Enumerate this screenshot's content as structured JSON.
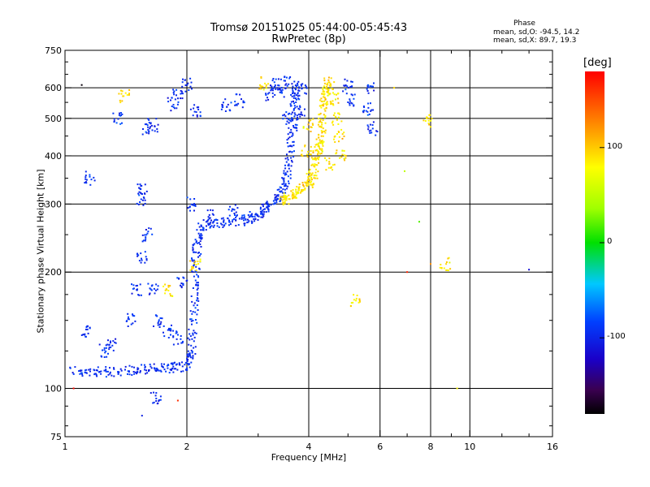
{
  "header": {
    "title_line1": "Tromsø 20151025 05:44:00-05:45:43",
    "title_line2": "RwPretec (8p)"
  },
  "phase_info": {
    "title": "Phase",
    "o_mode": "mean, sd,O: -94.5, 14.2",
    "x_mode": "mean, sd,X: 89.7, 19.3"
  },
  "colorbar": {
    "label": "[deg]",
    "tick_labels": [
      "100",
      "0",
      "-100"
    ],
    "tick_values": [
      100,
      0,
      -100
    ],
    "range": [
      -180,
      180
    ]
  },
  "chart_data": {
    "type": "scatter",
    "xlabel": "Frequency [MHz]",
    "ylabel": "Stationary phase Virtual Height [km]",
    "xscale": "log",
    "yscale": "log",
    "xlim": [
      1,
      16
    ],
    "ylim": [
      75,
      750
    ],
    "x_ticks": [
      1,
      2,
      4,
      6,
      8,
      10,
      16
    ],
    "x_tick_labels": [
      "1",
      "2",
      "4",
      "6",
      "8",
      "10",
      "16"
    ],
    "x_minor_ticks": [
      3,
      5,
      7,
      9,
      12,
      14
    ],
    "y_ticks": [
      75,
      100,
      200,
      300,
      400,
      500,
      600,
      750
    ],
    "y_tick_labels": [
      "75",
      "100",
      "200",
      "300",
      "400",
      "500",
      "600",
      "750"
    ],
    "y_minor_ticks": [
      80,
      90,
      125,
      150,
      175,
      250,
      350,
      450,
      550,
      650,
      700
    ],
    "grid_x": [
      2,
      4,
      6,
      8,
      10
    ],
    "grid_y": [
      100,
      200,
      300,
      400,
      500,
      600
    ],
    "color_encodes": "phase (deg)",
    "series": [
      {
        "mode": "O",
        "phase_mean": -94.5,
        "phase_sd": 14.2,
        "trace": [
          [
            1.05,
            111
          ],
          [
            1.2,
            110
          ],
          [
            1.4,
            111
          ],
          [
            1.6,
            112
          ],
          [
            1.8,
            113
          ],
          [
            2.0,
            114
          ],
          [
            2.05,
            125
          ],
          [
            2.08,
            160
          ],
          [
            2.1,
            200
          ],
          [
            2.12,
            240
          ],
          [
            2.2,
            266
          ],
          [
            2.5,
            268
          ],
          [
            2.8,
            273
          ],
          [
            3.0,
            282
          ],
          [
            3.2,
            295
          ],
          [
            3.4,
            315
          ],
          [
            3.5,
            345
          ],
          [
            3.6,
            400
          ],
          [
            3.65,
            480
          ],
          [
            3.7,
            560
          ],
          [
            3.72,
            620
          ]
        ],
        "points": [
          [
            1.12,
            140
          ],
          [
            1.25,
            125
          ],
          [
            1.3,
            130
          ],
          [
            1.45,
            150
          ],
          [
            1.5,
            180
          ],
          [
            1.55,
            220
          ],
          [
            1.6,
            250
          ],
          [
            1.65,
            180
          ],
          [
            1.7,
            150
          ],
          [
            1.8,
            140
          ],
          [
            1.9,
            135
          ],
          [
            1.95,
            190
          ],
          [
            1.55,
            310
          ],
          [
            1.55,
            330
          ],
          [
            2.05,
            300
          ],
          [
            2.3,
            280
          ],
          [
            2.6,
            290
          ],
          [
            1.85,
            545
          ],
          [
            1.9,
            575
          ],
          [
            2.0,
            610
          ],
          [
            2.1,
            525
          ],
          [
            2.5,
            540
          ],
          [
            2.7,
            555
          ],
          [
            3.2,
            575
          ],
          [
            3.3,
            610
          ],
          [
            3.45,
            590
          ],
          [
            3.5,
            620
          ],
          [
            3.55,
            500
          ],
          [
            3.8,
            520
          ],
          [
            3.85,
            600
          ],
          [
            5.0,
            610
          ],
          [
            5.1,
            560
          ],
          [
            5.6,
            530
          ],
          [
            5.7,
            595
          ],
          [
            5.75,
            470
          ],
          [
            1.15,
            350
          ],
          [
            1.35,
            500
          ],
          [
            1.6,
            470
          ],
          [
            1.65,
            480
          ],
          [
            1.68,
            94
          ]
        ]
      },
      {
        "mode": "X",
        "phase_mean": 89.7,
        "phase_sd": 19.3,
        "trace": [
          [
            3.4,
            305
          ],
          [
            3.6,
            312
          ],
          [
            3.8,
            325
          ],
          [
            4.0,
            340
          ],
          [
            4.1,
            360
          ],
          [
            4.2,
            400
          ],
          [
            4.3,
            460
          ],
          [
            4.35,
            520
          ],
          [
            4.4,
            580
          ],
          [
            4.45,
            630
          ]
        ],
        "points": [
          [
            4.5,
            600
          ],
          [
            4.6,
            560
          ],
          [
            4.7,
            500
          ],
          [
            4.75,
            450
          ],
          [
            4.8,
            400
          ],
          [
            4.5,
            380
          ],
          [
            4.2,
            420
          ],
          [
            4.0,
            480
          ],
          [
            3.95,
            410
          ],
          [
            3.1,
            615
          ],
          [
            1.4,
            570
          ],
          [
            2.1,
            210
          ],
          [
            1.8,
            180
          ],
          [
            5.2,
            170
          ],
          [
            7.9,
            490
          ],
          [
            8.7,
            210
          ]
        ]
      }
    ],
    "isolated_points": [
      [
        5.6,
        510
      ],
      [
        6.5,
        600
      ],
      [
        6.9,
        365
      ],
      [
        7.0,
        200
      ],
      [
        7.5,
        270
      ],
      [
        8.0,
        210
      ],
      [
        9.3,
        100
      ],
      [
        14.0,
        203
      ],
      [
        1.05,
        100
      ],
      [
        1.1,
        610
      ],
      [
        1.55,
        85
      ],
      [
        1.9,
        93
      ]
    ]
  }
}
